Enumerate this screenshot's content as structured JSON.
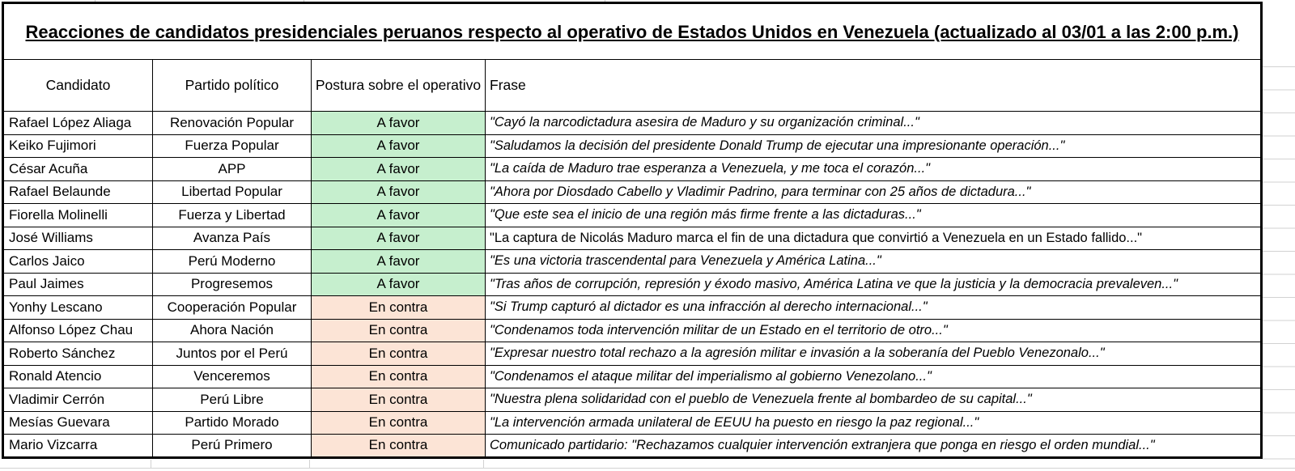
{
  "title": "Reacciones de candidatos presidenciales peruanos respecto al operativo de Estados Unidos en Venezuela (actualizado al 03/01 a las 2:00 p.m.)",
  "columns": [
    "Candidato",
    "Partido político",
    "Postura sobre el operativo",
    "Frase"
  ],
  "stance_colors": {
    "A favor": "#C6EFCE",
    "En contra": "#FCE4D6"
  },
  "colors": {
    "table_border": "#000000",
    "gridline": "#d2d2d2",
    "text": "#000000"
  },
  "rows": [
    {
      "candidato": "Rafael López Aliaga",
      "partido": "Renovación Popular",
      "postura": "A favor",
      "frase": "\"Cayó la narcodictadura asesira de Maduro y su organización criminal...\"",
      "italic": true
    },
    {
      "candidato": "Keiko Fujimori",
      "partido": "Fuerza Popular",
      "postura": "A favor",
      "frase": "\"Saludamos la decisión del presidente Donald Trump de ejecutar una impresionante operación...\"",
      "italic": true
    },
    {
      "candidato": "César Acuña",
      "partido": "APP",
      "postura": "A favor",
      "frase": "\"La caída de Maduro trae esperanza a Venezuela, y me toca el corazón...\"",
      "italic": true
    },
    {
      "candidato": "Rafael Belaunde",
      "partido": "Libertad Popular",
      "postura": "A favor",
      "frase": "\"Ahora por Diosdado Cabello y Vladimir Padrino, para terminar con 25 años de dictadura...\"",
      "italic": true
    },
    {
      "candidato": "Fiorella Molinelli",
      "partido": "Fuerza y Libertad",
      "postura": "A favor",
      "frase": "\"Que este sea el inicio de una región más firme frente a las dictaduras...\"",
      "italic": true
    },
    {
      "candidato": "José Williams",
      "partido": "Avanza País",
      "postura": "A favor",
      "frase": "\"La captura de Nicolás Maduro marca el fin de una dictadura que convirtió a Venezuela en un Estado fallido...\"",
      "italic": false
    },
    {
      "candidato": "Carlos Jaico",
      "partido": "Perú Moderno",
      "postura": "A favor",
      "frase": "\"Es una victoria trascendental para Venezuela y América Latina...\"",
      "italic": true
    },
    {
      "candidato": "Paul Jaimes",
      "partido": "Progresemos",
      "postura": "A favor",
      "frase": "\"Tras años de corrupción, represión y éxodo masivo, América Latina ve que la justicia y la democracia prevaleven...\"",
      "italic": true
    },
    {
      "candidato": "Yonhy Lescano",
      "partido": "Cooperación Popular",
      "postura": "En contra",
      "frase": "\"Si Trump capturó al dictador es una infracción al derecho internacional...\"",
      "italic": true
    },
    {
      "candidato": "Alfonso López Chau",
      "partido": "Ahora Nación",
      "postura": "En contra",
      "frase": "\"Condenamos toda intervención militar de un Estado en el territorio de otro...\"",
      "italic": true
    },
    {
      "candidato": "Roberto Sánchez",
      "partido": "Juntos por el Perú",
      "postura": "En contra",
      "frase": "\"Expresar nuestro total rechazo a la agresión militar e invasión a la soberanía del Pueblo Venezonalo...\"",
      "italic": true
    },
    {
      "candidato": "Ronald Atencio",
      "partido": "Venceremos",
      "postura": "En contra",
      "frase": "\"Condenamos el ataque militar del imperialismo al gobierno Venezolano...\"",
      "italic": true
    },
    {
      "candidato": "Vladimir Cerrón",
      "partido": "Perú Libre",
      "postura": "En contra",
      "frase": "\"Nuestra plena solidaridad con el pueblo de Venezuela frente al bombardeo de su capital...\"",
      "italic": true
    },
    {
      "candidato": "Mesías Guevara",
      "partido": "Partido Morado",
      "postura": "En contra",
      "frase": "\"La intervención armada unilateral de EEUU ha puesto en riesgo la paz regional...\"",
      "italic": true
    },
    {
      "candidato": "Mario Vizcarra",
      "partido": "Perú Primero",
      "postura": "En contra",
      "frase": "Comunicado partidario: \"Rechazamos cualquier intervención extranjera que ponga en riesgo el orden mundial...\"",
      "italic": true
    }
  ]
}
